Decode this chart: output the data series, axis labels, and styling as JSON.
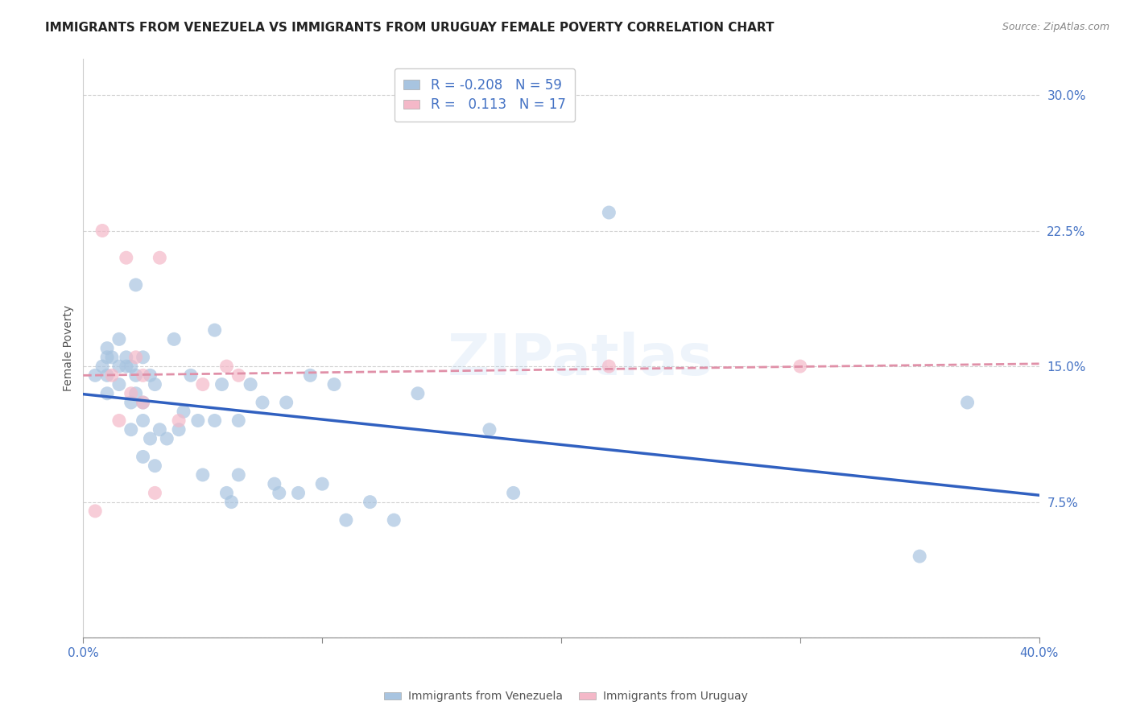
{
  "title": "IMMIGRANTS FROM VENEZUELA VS IMMIGRANTS FROM URUGUAY FEMALE POVERTY CORRELATION CHART",
  "source": "Source: ZipAtlas.com",
  "ylabel": "Female Poverty",
  "xlim": [
    0.0,
    0.4
  ],
  "ylim": [
    0.0,
    0.32
  ],
  "yticks": [
    0.0,
    0.075,
    0.15,
    0.225,
    0.3
  ],
  "yticklabels": [
    "",
    "7.5%",
    "15.0%",
    "22.5%",
    "30.0%"
  ],
  "xticks": [
    0.0,
    0.1,
    0.2,
    0.3,
    0.4
  ],
  "xticklabels": [
    "0.0%",
    "",
    "",
    "",
    "40.0%"
  ],
  "venezuela_color": "#a8c4e0",
  "uruguay_color": "#f4b8c8",
  "venezuela_R": -0.208,
  "venezuela_N": 59,
  "uruguay_R": 0.113,
  "uruguay_N": 17,
  "venezuela_line_color": "#3060c0",
  "uruguay_line_color": "#e090a8",
  "watermark": "ZIPatlas",
  "venezuela_x": [
    0.005,
    0.008,
    0.01,
    0.01,
    0.01,
    0.01,
    0.012,
    0.015,
    0.015,
    0.015,
    0.018,
    0.018,
    0.02,
    0.02,
    0.02,
    0.022,
    0.022,
    0.022,
    0.025,
    0.025,
    0.025,
    0.025,
    0.028,
    0.028,
    0.03,
    0.03,
    0.032,
    0.035,
    0.038,
    0.04,
    0.042,
    0.045,
    0.048,
    0.05,
    0.055,
    0.055,
    0.058,
    0.06,
    0.062,
    0.065,
    0.065,
    0.07,
    0.075,
    0.08,
    0.082,
    0.085,
    0.09,
    0.095,
    0.1,
    0.105,
    0.11,
    0.12,
    0.13,
    0.14,
    0.17,
    0.18,
    0.22,
    0.35,
    0.37
  ],
  "venezuela_y": [
    0.145,
    0.15,
    0.135,
    0.145,
    0.155,
    0.16,
    0.155,
    0.14,
    0.15,
    0.165,
    0.15,
    0.155,
    0.115,
    0.13,
    0.15,
    0.135,
    0.145,
    0.195,
    0.1,
    0.12,
    0.13,
    0.155,
    0.11,
    0.145,
    0.095,
    0.14,
    0.115,
    0.11,
    0.165,
    0.115,
    0.125,
    0.145,
    0.12,
    0.09,
    0.12,
    0.17,
    0.14,
    0.08,
    0.075,
    0.09,
    0.12,
    0.14,
    0.13,
    0.085,
    0.08,
    0.13,
    0.08,
    0.145,
    0.085,
    0.14,
    0.065,
    0.075,
    0.065,
    0.135,
    0.115,
    0.08,
    0.235,
    0.045,
    0.13
  ],
  "uruguay_x": [
    0.005,
    0.008,
    0.012,
    0.015,
    0.018,
    0.02,
    0.022,
    0.025,
    0.025,
    0.03,
    0.032,
    0.04,
    0.05,
    0.06,
    0.065,
    0.22,
    0.3
  ],
  "uruguay_y": [
    0.07,
    0.225,
    0.145,
    0.12,
    0.21,
    0.135,
    0.155,
    0.13,
    0.145,
    0.08,
    0.21,
    0.12,
    0.14,
    0.15,
    0.145,
    0.15,
    0.15
  ],
  "background_color": "#ffffff",
  "grid_color": "#cccccc",
  "title_fontsize": 11,
  "axis_label_fontsize": 10,
  "tick_fontsize": 11,
  "legend_fontsize": 12
}
